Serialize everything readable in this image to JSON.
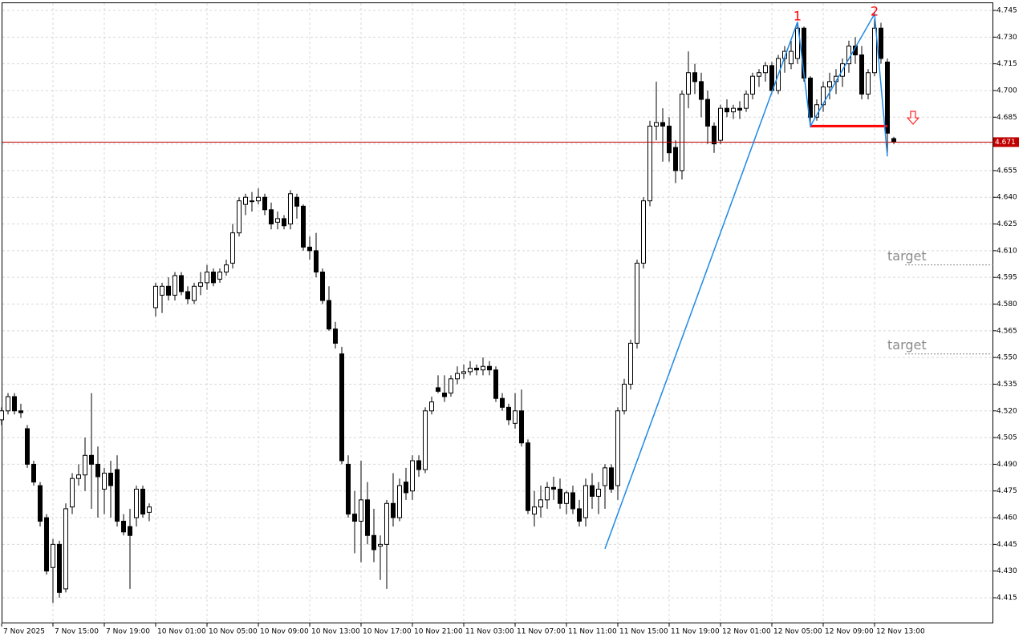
{
  "chart_data": {
    "type": "candlestick",
    "series": [
      {
        "open": [
          4.515,
          4.52,
          4.528,
          4.52,
          4.51,
          4.49,
          4.478,
          4.46,
          4.432,
          4.445,
          4.42,
          4.466,
          4.482,
          4.484,
          4.495,
          4.49,
          4.476,
          4.485,
          4.487,
          4.458,
          4.455,
          4.46,
          4.476,
          4.463,
          4.578,
          4.585,
          4.59,
          4.585,
          4.596,
          4.587,
          4.582,
          4.59,
          4.592,
          4.598,
          4.594,
          4.598,
          4.603,
          4.62,
          4.636,
          4.638,
          4.638,
          4.64,
          4.633,
          4.626,
          4.628,
          4.625,
          4.64,
          4.635,
          4.612,
          4.61,
          4.598,
          4.582,
          4.566,
          4.552,
          4.49,
          4.462,
          4.458,
          4.47,
          4.45,
          4.444,
          4.445,
          4.468,
          4.46,
          4.48,
          4.475,
          4.492,
          4.487,
          4.52,
          4.533,
          4.53,
          4.53,
          4.538,
          4.541,
          4.542,
          4.544,
          4.543,
          4.545,
          4.543,
          4.527,
          4.522,
          4.513,
          4.52,
          4.502,
          4.462,
          4.466,
          4.47,
          4.477,
          4.476,
          4.468,
          4.474,
          4.465,
          4.46,
          4.478,
          4.472,
          4.478,
          4.488,
          4.478,
          4.52,
          4.535,
          4.558,
          4.603,
          4.638,
          4.68,
          4.682,
          4.68,
          4.668,
          4.655,
          4.698,
          4.71,
          4.705,
          4.695,
          4.68,
          4.672,
          4.69,
          4.688,
          4.69,
          4.69,
          4.698,
          4.708,
          4.71,
          4.714,
          4.7,
          4.718,
          4.715,
          4.718,
          4.735,
          4.707,
          4.685,
          4.692,
          4.702,
          4.705,
          4.708,
          4.715,
          4.725,
          4.72,
          4.698,
          4.71,
          4.735,
          4.716,
          4.673
        ],
        "high": [
          4.522,
          4.53,
          4.53,
          4.524,
          4.512,
          4.492,
          4.48,
          4.462,
          4.448,
          4.447,
          4.468,
          4.485,
          4.49,
          4.505,
          4.53,
          4.5,
          4.488,
          4.492,
          4.495,
          4.462,
          4.465,
          4.478,
          4.478,
          4.468,
          4.592,
          4.592,
          4.595,
          4.598,
          4.598,
          4.59,
          4.592,
          4.598,
          4.602,
          4.6,
          4.6,
          4.605,
          4.625,
          4.64,
          4.642,
          4.643,
          4.645,
          4.642,
          4.637,
          4.632,
          4.63,
          4.644,
          4.642,
          4.636,
          4.618,
          4.62,
          4.6,
          4.59,
          4.57,
          4.556,
          4.495,
          4.475,
          4.492,
          4.48,
          4.465,
          4.45,
          4.47,
          4.485,
          4.482,
          4.488,
          4.495,
          4.495,
          4.522,
          4.528,
          4.54,
          4.54,
          4.54,
          4.545,
          4.546,
          4.548,
          4.546,
          4.55,
          4.548,
          4.545,
          4.53,
          4.524,
          4.53,
          4.532,
          4.504,
          4.475,
          4.478,
          4.48,
          4.483,
          4.482,
          4.475,
          4.478,
          4.47,
          4.482,
          4.485,
          4.48,
          4.49,
          4.49,
          4.522,
          4.538,
          4.56,
          4.605,
          4.64,
          4.683,
          4.705,
          4.69,
          4.685,
          4.672,
          4.7,
          4.722,
          4.715,
          4.71,
          4.7,
          4.682,
          4.692,
          4.695,
          4.692,
          4.694,
          4.7,
          4.71,
          4.712,
          4.716,
          4.716,
          4.72,
          4.725,
          4.728,
          4.738,
          4.736,
          4.708,
          4.695,
          4.705,
          4.71,
          4.712,
          4.718,
          4.728,
          4.73,
          4.725,
          4.712,
          4.74,
          4.738,
          4.718,
          4.674
        ],
        "low": [
          4.512,
          4.518,
          4.518,
          4.516,
          4.488,
          4.478,
          4.455,
          4.428,
          4.412,
          4.415,
          4.418,
          4.462,
          4.478,
          4.475,
          4.465,
          4.46,
          4.462,
          4.46,
          4.455,
          4.45,
          4.42,
          4.455,
          4.46,
          4.458,
          4.573,
          4.575,
          4.582,
          4.582,
          4.585,
          4.58,
          4.58,
          4.585,
          4.588,
          4.59,
          4.592,
          4.596,
          4.6,
          4.618,
          4.63,
          4.632,
          4.636,
          4.63,
          4.622,
          4.622,
          4.622,
          4.622,
          4.628,
          4.61,
          4.605,
          4.595,
          4.58,
          4.565,
          4.555,
          4.49,
          4.46,
          4.44,
          4.435,
          4.445,
          4.435,
          4.425,
          4.42,
          4.455,
          4.458,
          4.47,
          4.47,
          4.483,
          4.485,
          4.518,
          4.53,
          4.525,
          4.528,
          4.535,
          4.538,
          4.54,
          4.54,
          4.54,
          4.54,
          4.525,
          4.52,
          4.512,
          4.51,
          4.5,
          4.462,
          4.455,
          4.46,
          4.465,
          4.47,
          4.465,
          4.462,
          4.462,
          4.455,
          4.455,
          4.465,
          4.462,
          4.465,
          4.474,
          4.47,
          4.518,
          4.532,
          4.555,
          4.6,
          4.635,
          4.672,
          4.66,
          4.66,
          4.648,
          4.65,
          4.69,
          4.698,
          4.685,
          4.67,
          4.665,
          4.67,
          4.685,
          4.684,
          4.684,
          4.688,
          4.695,
          4.702,
          4.705,
          4.698,
          4.698,
          4.71,
          4.712,
          4.715,
          4.705,
          4.68,
          4.683,
          4.688,
          4.695,
          4.698,
          4.702,
          4.71,
          4.715,
          4.695,
          4.695,
          4.708,
          4.715,
          4.665,
          4.67
        ],
        "close": [
          4.52,
          4.528,
          4.52,
          4.519,
          4.49,
          4.48,
          4.458,
          4.43,
          4.445,
          4.418,
          4.465,
          4.482,
          4.484,
          4.495,
          4.49,
          4.483,
          4.485,
          4.478,
          4.458,
          4.452,
          4.45,
          4.476,
          4.462,
          4.466,
          4.59,
          4.59,
          4.585,
          4.596,
          4.587,
          4.583,
          4.59,
          4.592,
          4.598,
          4.592,
          4.598,
          4.602,
          4.62,
          4.638,
          4.64,
          4.638,
          4.64,
          4.633,
          4.625,
          4.628,
          4.624,
          4.642,
          4.635,
          4.612,
          4.61,
          4.598,
          4.582,
          4.566,
          4.558,
          4.492,
          4.462,
          4.458,
          4.47,
          4.45,
          4.442,
          4.445,
          4.468,
          4.46,
          4.478,
          4.474,
          4.492,
          4.487,
          4.52,
          4.525,
          4.531,
          4.528,
          4.538,
          4.541,
          4.542,
          4.544,
          4.543,
          4.545,
          4.543,
          4.527,
          4.522,
          4.515,
          4.52,
          4.502,
          4.464,
          4.466,
          4.47,
          4.477,
          4.476,
          4.468,
          4.474,
          4.465,
          4.458,
          4.478,
          4.472,
          4.476,
          4.488,
          4.476,
          4.52,
          4.535,
          4.558,
          4.603,
          4.638,
          4.68,
          4.682,
          4.68,
          4.665,
          4.655,
          4.698,
          4.71,
          4.705,
          4.695,
          4.68,
          4.67,
          4.69,
          4.688,
          4.69,
          4.689,
          4.698,
          4.708,
          4.71,
          4.714,
          4.7,
          4.718,
          4.722,
          4.722,
          4.735,
          4.707,
          4.685,
          4.692,
          4.702,
          4.705,
          4.708,
          4.715,
          4.725,
          4.72,
          4.698,
          4.71,
          4.735,
          4.718,
          4.676,
          4.671
        ]
      }
    ],
    "xlim": [
      -0.25,
      154.5
    ],
    "xticks": [
      {
        "value": 0,
        "label": "7 Nov 2025"
      },
      {
        "value": 8,
        "label": "7 Nov 15:00"
      },
      {
        "value": 16,
        "label": "7 Nov 19:00"
      },
      {
        "value": 24,
        "label": "10 Nov 01:00"
      },
      {
        "value": 32,
        "label": "10 Nov 05:00"
      },
      {
        "value": 40,
        "label": "10 Nov 09:00"
      },
      {
        "value": 48,
        "label": "10 Nov 13:00"
      },
      {
        "value": 56,
        "label": "10 Nov 17:00"
      },
      {
        "value": 64,
        "label": "10 Nov 21:00"
      },
      {
        "value": 72,
        "label": "11 Nov 03:00"
      },
      {
        "value": 80,
        "label": "11 Nov 07:00"
      },
      {
        "value": 88,
        "label": "11 Nov 11:00"
      },
      {
        "value": 96,
        "label": "11 Nov 15:00"
      },
      {
        "value": 104,
        "label": "11 Nov 19:00"
      },
      {
        "value": 112,
        "label": "12 Nov 01:00"
      },
      {
        "value": 120,
        "label": "12 Nov 05:00"
      },
      {
        "value": 128,
        "label": "12 Nov 09:00"
      },
      {
        "value": 136,
        "label": "12 Nov 13:00"
      }
    ],
    "ylim": [
      4.4006,
      4.7495
    ],
    "yticks": [
      {
        "value": 4.745,
        "label": "4.745"
      },
      {
        "value": 4.73,
        "label": "4.730"
      },
      {
        "value": 4.715,
        "label": "4.715"
      },
      {
        "value": 4.7,
        "label": "4.700"
      },
      {
        "value": 4.685,
        "label": "4.685"
      },
      {
        "value": 4.67,
        "label": "4.670"
      },
      {
        "value": 4.655,
        "label": "4.655"
      },
      {
        "value": 4.64,
        "label": "4.640"
      },
      {
        "value": 4.625,
        "label": "4.625"
      },
      {
        "value": 4.61,
        "label": "4.610"
      },
      {
        "value": 4.595,
        "label": "4.595"
      },
      {
        "value": 4.58,
        "label": "4.580"
      },
      {
        "value": 4.565,
        "label": "4.565"
      },
      {
        "value": 4.55,
        "label": "4.550"
      },
      {
        "value": 4.535,
        "label": "4.535"
      },
      {
        "value": 4.52,
        "label": "4.520"
      },
      {
        "value": 4.505,
        "label": "4.505"
      },
      {
        "value": 4.49,
        "label": "4.490"
      },
      {
        "value": 4.475,
        "label": "4.475"
      },
      {
        "value": 4.46,
        "label": "4.460"
      },
      {
        "value": 4.445,
        "label": "4.445"
      },
      {
        "value": 4.43,
        "label": "4.430"
      },
      {
        "value": 4.415,
        "label": "4.415"
      }
    ],
    "grid": true,
    "price_line": 4.671,
    "zigzag": {
      "color": "#1e88e5",
      "x": [
        94,
        124,
        126,
        136,
        138
      ],
      "values": [
        4.4425,
        4.7385,
        4.68,
        4.743,
        4.663
      ]
    },
    "peaks": [
      {
        "label": "1",
        "x": 124,
        "value": 4.7415
      },
      {
        "label": "2",
        "x": 136,
        "value": 4.744
      }
    ],
    "neckline": {
      "color": "#ff0000",
      "x": [
        126,
        138
      ],
      "value": 4.68
    },
    "targets": [
      {
        "label": "target",
        "value": 4.602
      },
      {
        "label": "target",
        "value": 4.552
      }
    ]
  }
}
